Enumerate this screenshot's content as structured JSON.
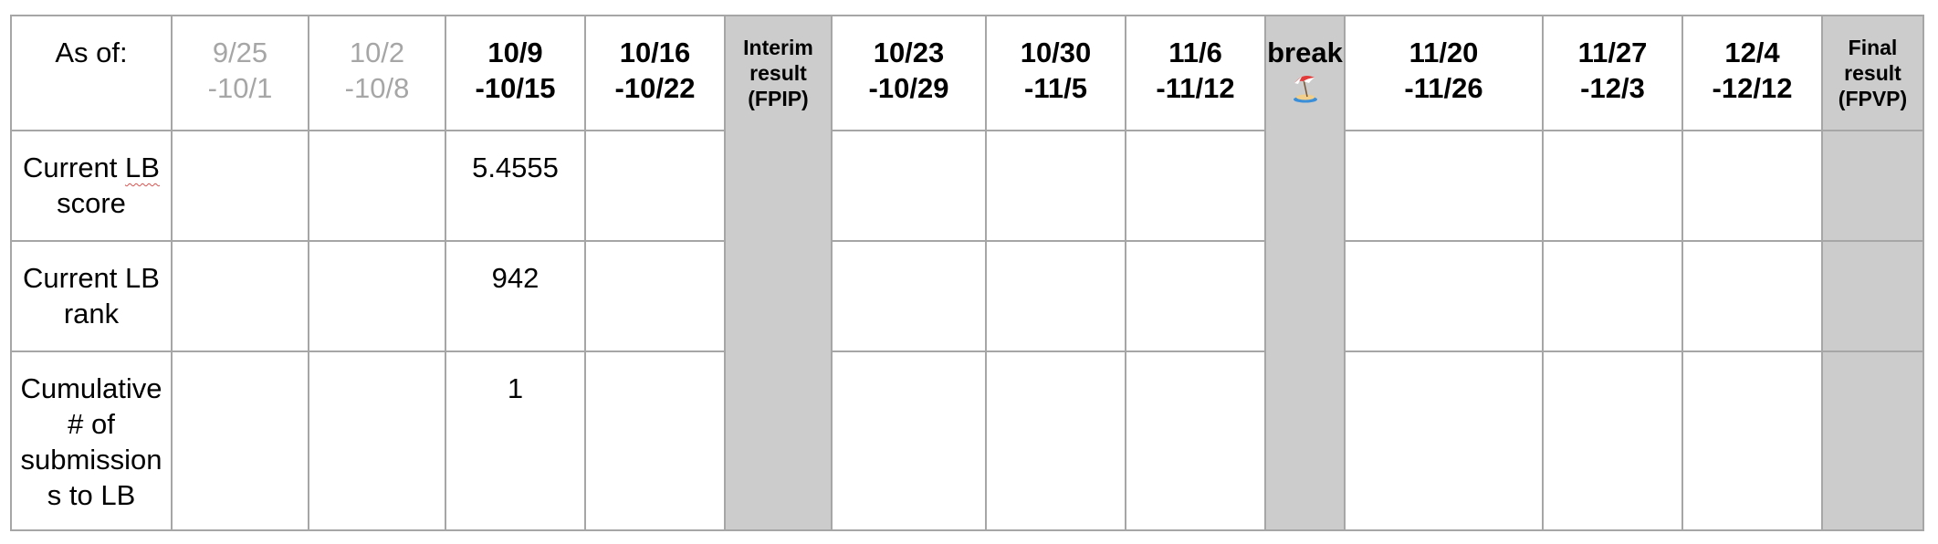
{
  "table": {
    "header": {
      "as_of": "As of:",
      "weeks": [
        {
          "start": "9/25",
          "end": "-10/1"
        },
        {
          "start": "10/2",
          "end": "-10/8"
        },
        {
          "start": "10/9",
          "end": "-10/15"
        },
        {
          "start": "10/16",
          "end": "-10/22"
        },
        {
          "interim_line1": "Interim",
          "interim_line2": "result",
          "interim_line3": "(FPIP)"
        },
        {
          "start": "10/23",
          "end": "-10/29"
        },
        {
          "start": "10/30",
          "end": "-11/5"
        },
        {
          "start": "11/6",
          "end": "-11/12"
        },
        {
          "break_label": "break",
          "break_icon": "beach-umbrella-icon"
        },
        {
          "start": "11/20",
          "end": "-11/26"
        },
        {
          "start": "11/27",
          "end": "-12/3"
        },
        {
          "start": "12/4",
          "end": "-12/12"
        },
        {
          "final_line1": "Final",
          "final_line2": "result",
          "final_line3": "(FPVP)"
        }
      ]
    },
    "rows": [
      {
        "label_part1": "Current ",
        "label_marked": "LB",
        "label_part2": "score",
        "values": [
          "",
          "",
          "5.4555",
          "",
          "",
          "",
          "",
          "",
          "",
          "",
          "",
          "",
          ""
        ]
      },
      {
        "label_part1": "Current LB",
        "label_part2": "rank",
        "values": [
          "",
          "",
          "942",
          "",
          "",
          "",
          "",
          "",
          "",
          "",
          "",
          "",
          ""
        ]
      },
      {
        "label_part1": "Cumulative",
        "label_part2": "# of",
        "label_part3": "submission",
        "label_part4": "s to LB",
        "values": [
          "",
          "",
          "1",
          "",
          "",
          "",
          "",
          "",
          "",
          "",
          "",
          "",
          ""
        ]
      }
    ],
    "colors": {
      "border": "#a6a6a6",
      "shaded_column": "#cccccc",
      "past_week_text": "#a6a6a6",
      "text": "#000000"
    }
  }
}
